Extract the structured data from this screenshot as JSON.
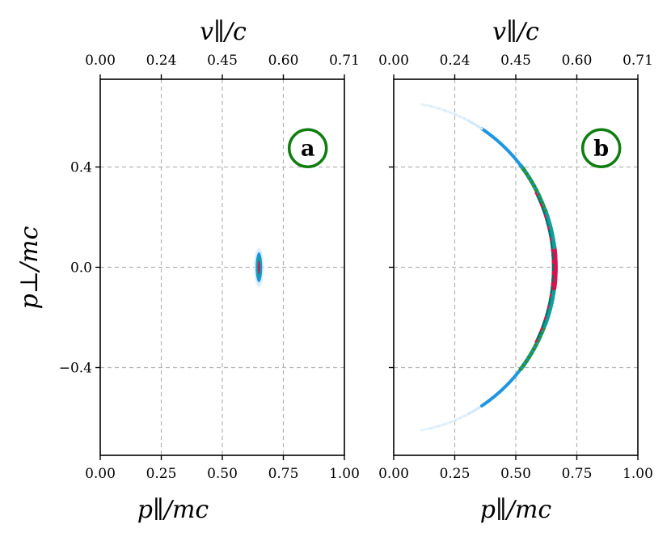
{
  "chart_data": [
    {
      "type": "heatmap",
      "panel_label": "a",
      "xlabel": "p∥/mc",
      "ylabel": "p⊥/mc",
      "top_xlabel": "v∥/c",
      "xlim": [
        0,
        1
      ],
      "ylim": [
        -0.75,
        0.75
      ],
      "x_ticks": [
        "0.00",
        "0.25",
        "0.50",
        "0.75",
        "1.00"
      ],
      "top_x_ticks": [
        "0.00",
        "0.24",
        "0.45",
        "0.60",
        "0.71"
      ],
      "y_ticks": [
        "0.4",
        "0.0",
        "−0.4"
      ],
      "grid": true,
      "distribution": {
        "shape": "spot",
        "p_parallel": 0.65,
        "p_perp": 0.0,
        "spread_parallel": 0.012,
        "spread_perp": 0.06
      }
    },
    {
      "type": "heatmap",
      "panel_label": "b",
      "xlabel": "p∥/mc",
      "top_xlabel": "v∥/c",
      "xlim": [
        0,
        1
      ],
      "ylim": [
        -0.75,
        0.75
      ],
      "x_ticks": [
        "0.00",
        "0.25",
        "0.50",
        "0.75",
        "1.00"
      ],
      "top_x_ticks": [
        "0.00",
        "0.24",
        "0.45",
        "0.60",
        "0.71"
      ],
      "grid": true,
      "distribution": {
        "shape": "arc",
        "radius": 0.66,
        "p_perp_range": [
          -0.65,
          0.65
        ],
        "peak_at": 0.0
      }
    }
  ],
  "colors": {
    "badge_ring": "#0f7d0f",
    "grid": "#b3b3b3",
    "low": "#cfe8fb",
    "mid_low": "#1f96e0",
    "mid": "#0e9f9a",
    "mid_high": "#2e8b2e",
    "high": "#d8134f"
  }
}
